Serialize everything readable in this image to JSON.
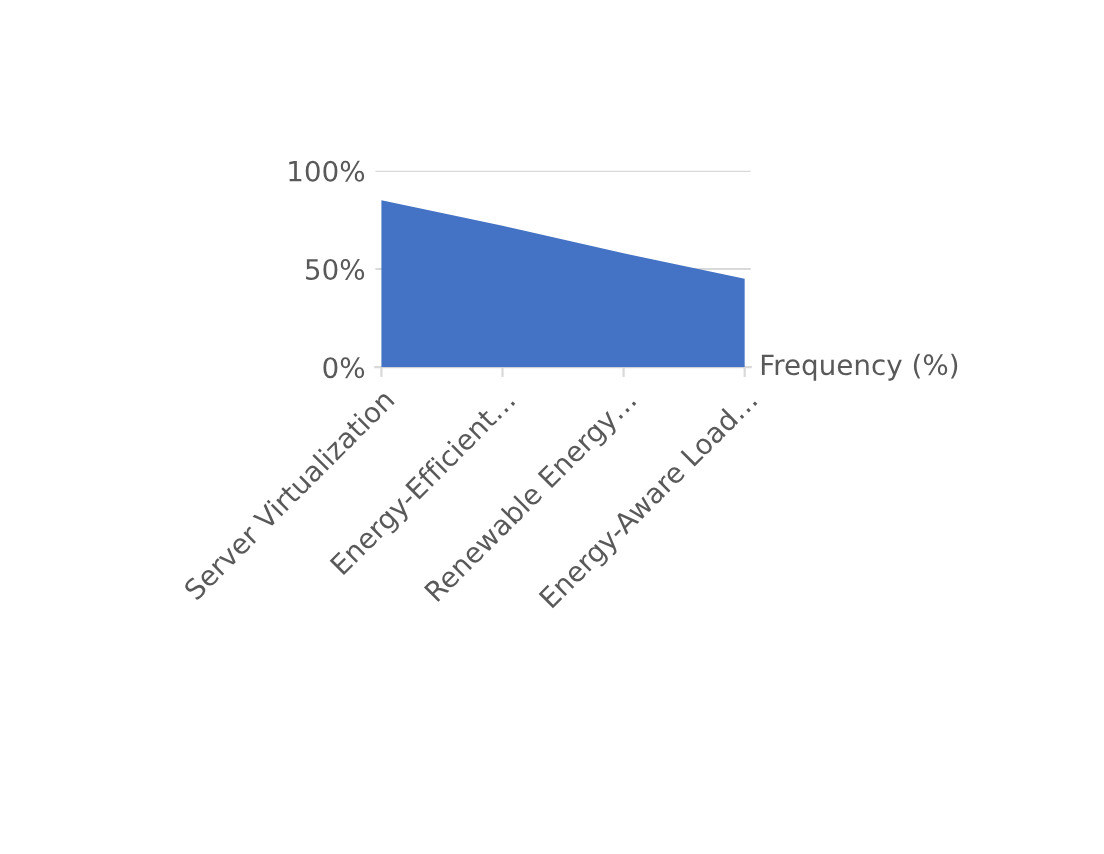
{
  "chart_data": {
    "type": "area",
    "categories": [
      "Server Virtualization",
      "Energy-Efficient…",
      "Renewable Energy…",
      "Energy-Aware Load…"
    ],
    "series": [
      {
        "name": "Frequency (%)",
        "color": "#4472c4",
        "values": [
          85,
          72,
          58,
          45
        ]
      }
    ],
    "ylim": [
      0,
      100
    ],
    "yticks": [
      {
        "value": 0,
        "label": "0%"
      },
      {
        "value": 50,
        "label": "50%"
      },
      {
        "value": 100,
        "label": "100%"
      }
    ],
    "grid": "y",
    "legend": false
  }
}
